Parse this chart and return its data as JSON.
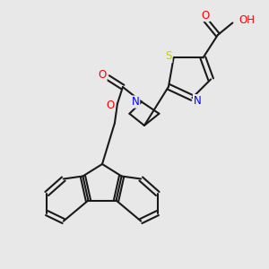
{
  "bg_color": "#e8e8e8",
  "bond_color": "#1a1a1a",
  "bond_width": 1.5,
  "atom_colors": {
    "O": "#ff0000",
    "N": "#0000ff",
    "S": "#cccc00",
    "H": "#5f9ea0",
    "C": "#1a1a1a"
  },
  "font_size": 8.5
}
